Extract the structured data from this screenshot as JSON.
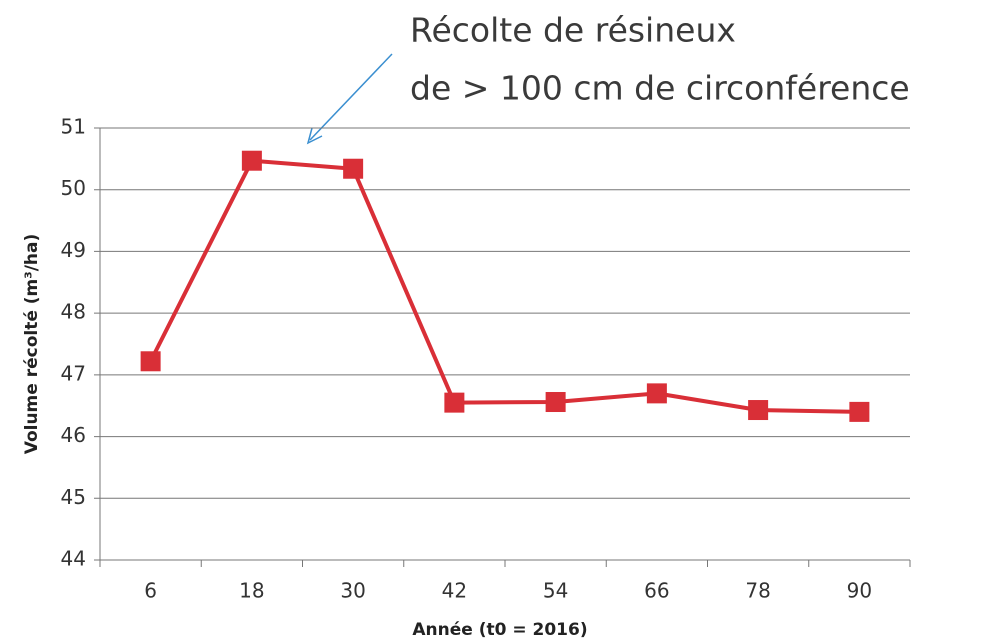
{
  "chart_data": {
    "type": "line",
    "annotation_lines": [
      "Récolte de résineux",
      "de > 100 cm de circonférence"
    ],
    "x_label": "Année (t0 = 2016)",
    "y_label": "Volume récolté (m³/ha)",
    "categories": [
      "6",
      "18",
      "30",
      "42",
      "54",
      "66",
      "78",
      "90"
    ],
    "series": [
      {
        "name": "Volume récolté",
        "color": "#d92f37",
        "values": [
          47.22,
          50.47,
          50.34,
          46.55,
          46.56,
          46.7,
          46.43,
          46.4
        ]
      }
    ],
    "ylim": [
      44,
      51
    ],
    "yticks": [
      44,
      45,
      46,
      47,
      48,
      49,
      50,
      51
    ],
    "grid": true
  }
}
